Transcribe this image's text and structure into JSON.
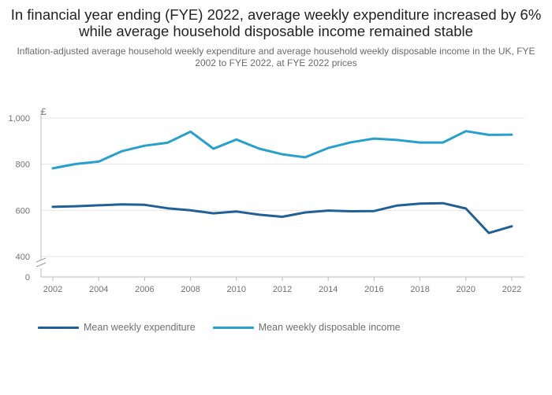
{
  "header": {
    "title": "In financial year ending (FYE) 2022, average weekly expenditure increased by 6% while average household disposable income remained stable",
    "subtitle": "Inflation-adjusted average household weekly expenditure and average household weekly disposable income in the UK, FYE 2002 to FYE 2022, at FYE 2022 prices"
  },
  "chart_data": {
    "type": "line",
    "title": "In financial year ending (FYE) 2022, average weekly expenditure increased by 6% while average household disposable income remained stable",
    "subtitle": "Inflation-adjusted average household weekly expenditure and average household weekly disposable income in the UK, FYE 2002 to FYE 2022, at FYE 2022 prices",
    "ylabel": "£",
    "xlabel": "",
    "x": [
      2002,
      2003,
      2004,
      2005,
      2006,
      2007,
      2008,
      2009,
      2010,
      2011,
      2012,
      2013,
      2014,
      2015,
      2016,
      2017,
      2018,
      2019,
      2020,
      2021,
      2022
    ],
    "x_ticks": [
      "2002",
      "2004",
      "2006",
      "2008",
      "2010",
      "2012",
      "2014",
      "2016",
      "2018",
      "2020",
      "2022"
    ],
    "y_ticks": [
      "0",
      "400",
      "600",
      "800",
      "1,000"
    ],
    "y_axis_break": true,
    "ylim": [
      0,
      1000
    ],
    "grid": true,
    "legend_position": "bottom-left",
    "series": [
      {
        "name": "Mean weekly expenditure",
        "color": "#206095",
        "values": [
          615,
          618,
          622,
          626,
          624,
          609,
          600,
          587,
          595,
          581,
          572,
          591,
          599,
          596,
          597,
          621,
          629,
          631,
          608,
          502,
          531
        ]
      },
      {
        "name": "Mean weekly disposable income",
        "color": "#27a0cc",
        "values": [
          782,
          801,
          811,
          856,
          880,
          893,
          941,
          867,
          907,
          867,
          843,
          830,
          870,
          895,
          911,
          905,
          894,
          894,
          943,
          927,
          928
        ]
      }
    ]
  }
}
